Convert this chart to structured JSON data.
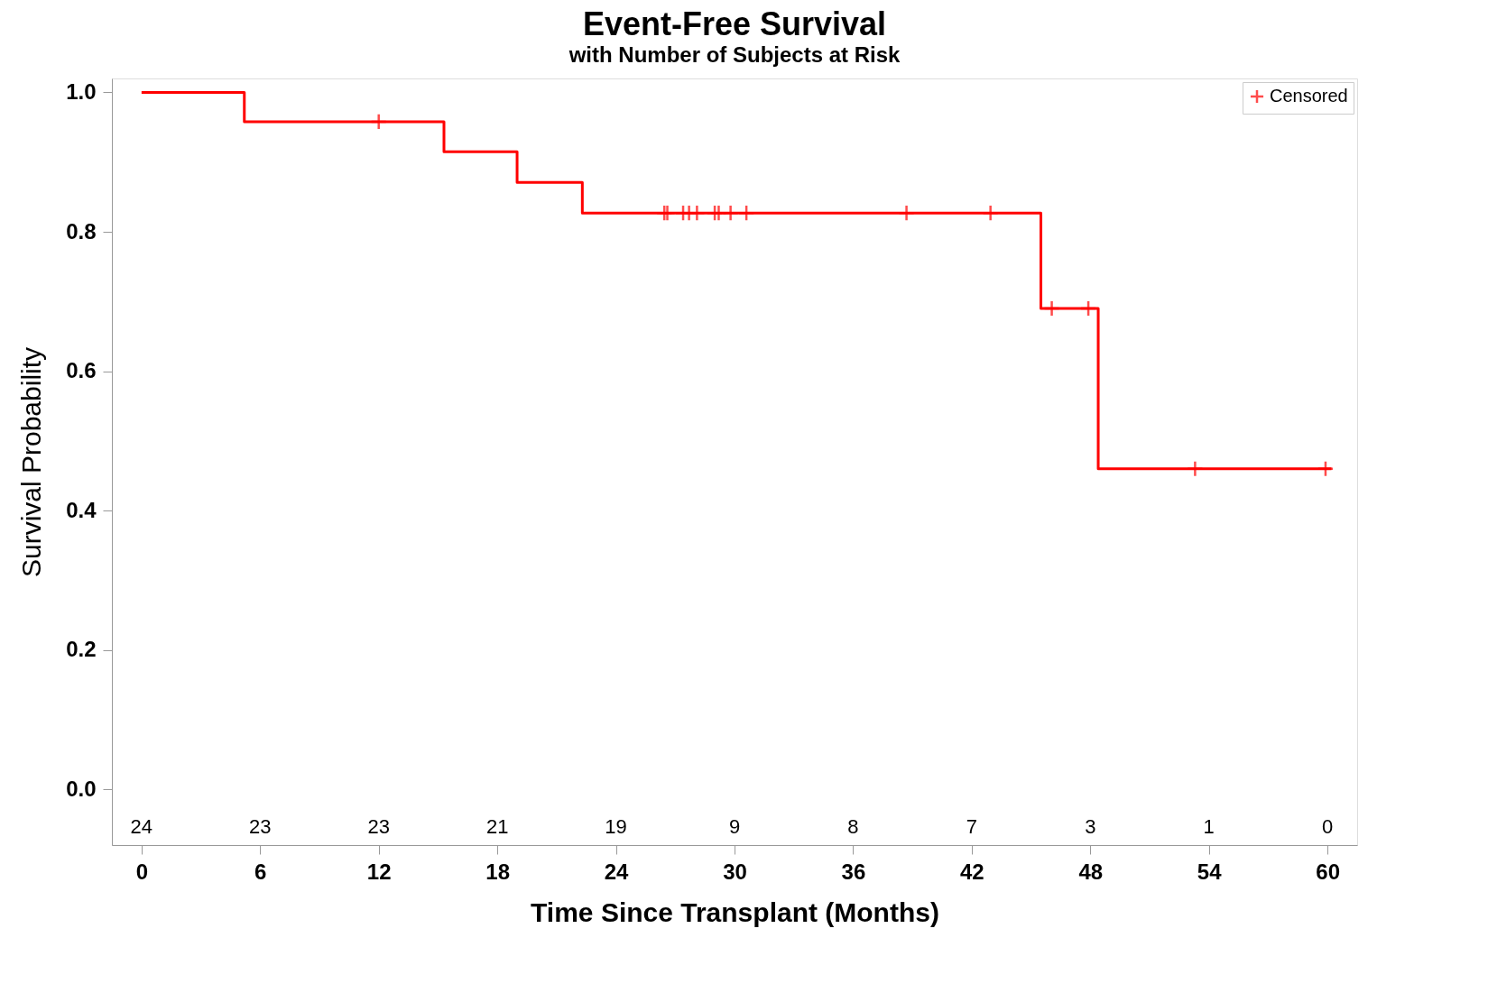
{
  "chart_data": {
    "type": "step",
    "title": "Event-Free Survival",
    "subtitle": "with Number of Subjects at Risk",
    "xlabel": "Time Since Transplant (Months)",
    "ylabel": "Survival Probability",
    "xlim": [
      -1.5,
      61.5
    ],
    "ylim": [
      -0.08,
      1.02
    ],
    "xticks": [
      0,
      6,
      12,
      18,
      24,
      30,
      36,
      42,
      48,
      54,
      60
    ],
    "yticks": [
      {
        "value": 0,
        "label": "0.0"
      },
      {
        "value": 0.2,
        "label": "0.2"
      },
      {
        "value": 0.4,
        "label": "0.4"
      },
      {
        "value": 0.6,
        "label": "0.6"
      },
      {
        "value": 0.8,
        "label": "0.8"
      },
      {
        "value": 1,
        "label": "1.0"
      }
    ],
    "grid": false,
    "legend": "top right",
    "series": [
      {
        "color": "#ff0000",
        "x": [
          0,
          5.2,
          15.3,
          19.0,
          22.3,
          45.5,
          48.4,
          60.2
        ],
        "values": [
          1.0,
          0.958,
          0.915,
          0.871,
          0.827,
          0.69,
          0.46,
          0.46
        ]
      },
      {
        "type": "scatter",
        "name": "Censored",
        "color": "#ff0000",
        "marker": "cross",
        "x": [
          12.0,
          26.45,
          26.6,
          27.4,
          27.7,
          28.1,
          29.0,
          29.2,
          29.8,
          30.6,
          38.7,
          42.95,
          46.05,
          47.9,
          53.3,
          59.9
        ],
        "values": [
          0.958,
          0.827,
          0.827,
          0.827,
          0.827,
          0.827,
          0.827,
          0.827,
          0.827,
          0.827,
          0.827,
          0.827,
          0.69,
          0.69,
          0.46,
          0.46
        ]
      }
    ],
    "annotations": [
      "24",
      "23",
      "23",
      "21",
      "19",
      "9",
      "8",
      "7",
      "3",
      "1",
      "0"
    ]
  }
}
